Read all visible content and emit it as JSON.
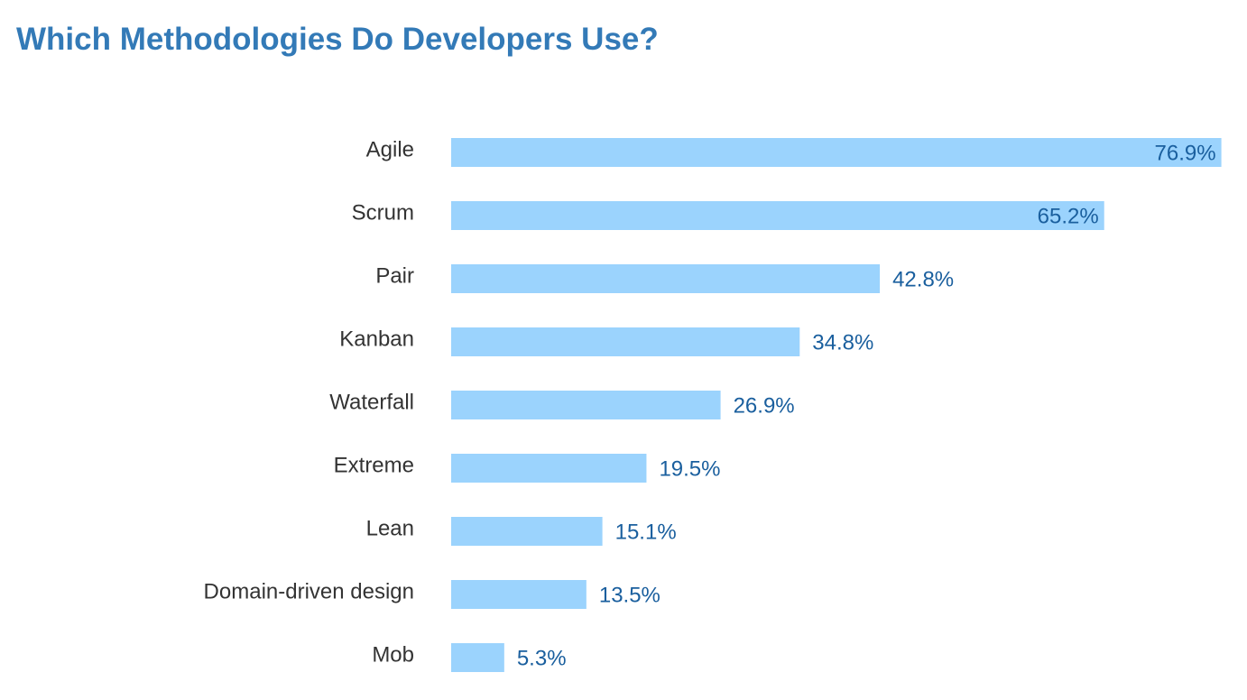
{
  "chart_data": {
    "type": "bar",
    "orientation": "horizontal",
    "title": "Which Methodologies Do Developers Use?",
    "xlabel": "",
    "ylabel": "",
    "categories": [
      "Agile",
      "Scrum",
      "Pair",
      "Kanban",
      "Waterfall",
      "Extreme",
      "Lean",
      "Domain-driven design",
      "Mob"
    ],
    "values": [
      76.9,
      65.2,
      42.8,
      34.8,
      26.9,
      19.5,
      15.1,
      13.5,
      5.3
    ],
    "value_labels": [
      "76.9%",
      "65.2%",
      "42.8%",
      "34.8%",
      "26.9%",
      "19.5%",
      "15.1%",
      "13.5%",
      "5.3%"
    ],
    "xlim": [
      0,
      77
    ],
    "grid": false,
    "legend": "none",
    "colors": {
      "bar": "#9bd3fd",
      "title": "#337ab7",
      "category_label": "#333333",
      "value_label": "#1a5f9e"
    }
  }
}
